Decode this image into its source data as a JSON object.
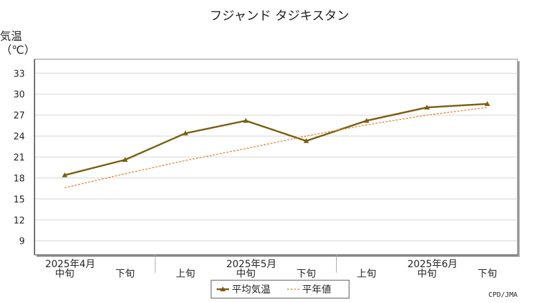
{
  "chart_data": {
    "type": "line",
    "title": "フジャンド タジキスタン",
    "ylabel": "気温\n（℃）",
    "ylim": [
      7,
      35
    ],
    "yticks": [
      9,
      12,
      15,
      18,
      21,
      24,
      27,
      30,
      33
    ],
    "grid": true,
    "legend_position": "bottom",
    "categories": [
      "中旬",
      "下旬",
      "上旬",
      "中旬",
      "下旬",
      "上旬",
      "中旬",
      "下旬"
    ],
    "month_labels": [
      {
        "label": "2025年4月",
        "index": 0
      },
      {
        "label": "2025年5月",
        "index": 3
      },
      {
        "label": "2025年6月",
        "index": 6
      }
    ],
    "series": [
      {
        "name": "平均気温",
        "color": "#7a5f10",
        "style": "solid",
        "marker": "triangle",
        "values": [
          18.4,
          20.6,
          24.4,
          26.2,
          23.3,
          26.2,
          28.1,
          28.6
        ]
      },
      {
        "name": "平年値",
        "color": "#e8822a",
        "style": "dashed",
        "marker": "none",
        "values": [
          16.6,
          18.6,
          20.5,
          22.2,
          24.0,
          25.6,
          27.0,
          28.1
        ]
      }
    ],
    "credit": "CPD/JMA"
  }
}
